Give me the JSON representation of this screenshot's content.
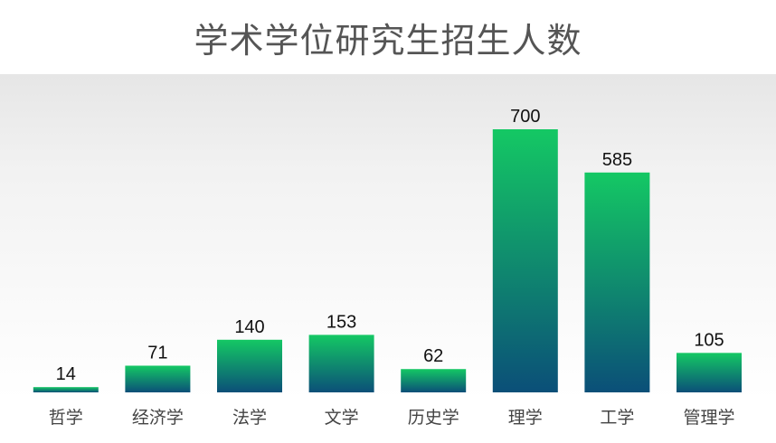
{
  "title": "学术学位研究生招生人数",
  "chart_data": {
    "type": "bar",
    "title": "学术学位研究生招生人数",
    "categories": [
      "哲学",
      "经济学",
      "法学",
      "文学",
      "历史学",
      "理学",
      "工学",
      "管理学"
    ],
    "values": [
      14,
      71,
      140,
      153,
      62,
      700,
      585,
      105
    ],
    "xlabel": "",
    "ylabel": "",
    "ylim": [
      0,
      700
    ],
    "grid": false,
    "data_labels": true,
    "colors": {
      "bar_top": "#14c864",
      "bar_bottom": "#0b4f78",
      "label": "#111111",
      "tick": "#444444"
    }
  }
}
